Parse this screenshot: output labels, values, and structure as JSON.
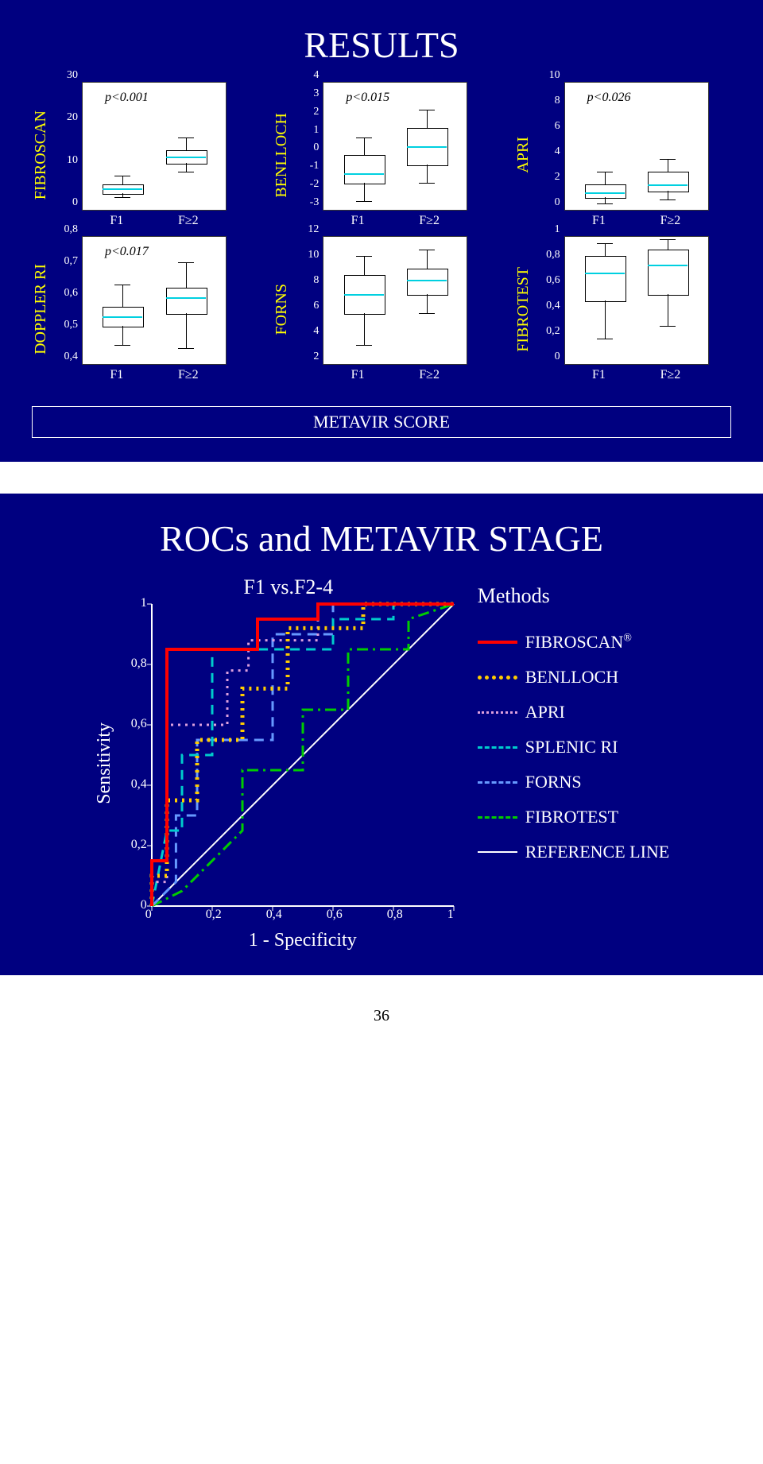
{
  "page_number": "36",
  "slide1": {
    "title": "RESULTS",
    "metavir_label": "METAVIR SCORE",
    "charts": [
      {
        "label": "FIBROSCAN",
        "pval": "p<0.001",
        "yticks": [
          "0",
          "10",
          "20",
          "30"
        ],
        "ymin": 0,
        "ymax": 30,
        "categories": [
          "F1",
          "F≥2"
        ],
        "boxes": [
          {
            "q1": 4,
            "med": 5,
            "q3": 6,
            "lo": 3,
            "hi": 8
          },
          {
            "q1": 11,
            "med": 12.5,
            "q3": 14,
            "lo": 9,
            "hi": 17
          }
        ]
      },
      {
        "label": "BENLLOCH",
        "pval": "p<0.015",
        "yticks": [
          "-3",
          "-2",
          "-1",
          "0",
          "1",
          "2",
          "3",
          "4"
        ],
        "ymin": -3,
        "ymax": 4,
        "categories": [
          "F1",
          "F≥2"
        ],
        "boxes": [
          {
            "q1": -1.5,
            "med": -1,
            "q3": 0,
            "lo": -2.5,
            "hi": 1
          },
          {
            "q1": -0.5,
            "med": 0.5,
            "q3": 1.5,
            "lo": -1.5,
            "hi": 2.5
          }
        ]
      },
      {
        "label": "APRI",
        "pval": "p<0.026",
        "yticks": [
          "0",
          "2",
          "4",
          "6",
          "8",
          "10"
        ],
        "ymin": 0,
        "ymax": 10,
        "categories": [
          "F1",
          "F≥2"
        ],
        "boxes": [
          {
            "q1": 1,
            "med": 1.4,
            "q3": 2,
            "lo": 0.5,
            "hi": 3
          },
          {
            "q1": 1.5,
            "med": 2,
            "q3": 3,
            "lo": 0.8,
            "hi": 4
          }
        ]
      },
      {
        "label": "DOPPLER RI",
        "pval": "p<0.017",
        "yticks": [
          "0,4",
          "0,5",
          "0,6",
          "0,7",
          "0,8"
        ],
        "ymin": 0.4,
        "ymax": 0.8,
        "categories": [
          "F1",
          "F≥2"
        ],
        "boxes": [
          {
            "q1": 0.52,
            "med": 0.55,
            "q3": 0.58,
            "lo": 0.46,
            "hi": 0.65
          },
          {
            "q1": 0.56,
            "med": 0.61,
            "q3": 0.64,
            "lo": 0.45,
            "hi": 0.72
          }
        ]
      },
      {
        "label": "FORNS",
        "pval": "",
        "yticks": [
          "2",
          "4",
          "6",
          "8",
          "10",
          "12"
        ],
        "ymin": 2,
        "ymax": 12,
        "categories": [
          "F1",
          "F≥2"
        ],
        "boxes": [
          {
            "q1": 6,
            "med": 7.5,
            "q3": 9,
            "lo": 3.5,
            "hi": 10.5
          },
          {
            "q1": 7.5,
            "med": 8.6,
            "q3": 9.5,
            "lo": 6,
            "hi": 11
          }
        ]
      },
      {
        "label": "FIBROTEST",
        "pval": "",
        "yticks": [
          "0",
          "0,2",
          "0,4",
          "0,6",
          "0,8",
          "1"
        ],
        "ymin": 0,
        "ymax": 1,
        "categories": [
          "F1",
          "F≥2"
        ],
        "boxes": [
          {
            "q1": 0.5,
            "med": 0.72,
            "q3": 0.85,
            "lo": 0.2,
            "hi": 0.95
          },
          {
            "q1": 0.55,
            "med": 0.78,
            "q3": 0.9,
            "lo": 0.3,
            "hi": 0.98
          }
        ]
      }
    ]
  },
  "slide2": {
    "title": "ROCs  and METAVIR STAGE",
    "subtitle": "F1 vs.F2-4",
    "ylabel": "Sensitivity",
    "xlabel": "1 - Specificity",
    "xticks": [
      "0",
      "0,2",
      "0,4",
      "0,6",
      "0,8",
      "1"
    ],
    "yticks": [
      "0",
      "0,2",
      "0,4",
      "0,6",
      "0,8",
      "1"
    ],
    "legend_title": "Methods",
    "legend": [
      {
        "label": "FIBROSCAN",
        "suffix": "®",
        "color": "#ff0000",
        "dash": "solid",
        "width": 4
      },
      {
        "label": "BENLLOCH",
        "suffix": "",
        "color": "#ffcc00",
        "dash": "dotted",
        "width": 5
      },
      {
        "label": "APRI",
        "suffix": "",
        "color": "#dda0dd",
        "dash": "dotted",
        "width": 3
      },
      {
        "label": "SPLENIC RI",
        "suffix": "",
        "color": "#00cccc",
        "dash": "dashed",
        "width": 3
      },
      {
        "label": "FORNS",
        "suffix": "",
        "color": "#6699ff",
        "dash": "dashed",
        "width": 3
      },
      {
        "label": "FIBROTEST",
        "suffix": "",
        "color": "#00cc00",
        "dash": "dash-dot",
        "width": 3
      },
      {
        "label": "REFERENCE LINE",
        "suffix": "",
        "color": "#ffffff",
        "dash": "solid",
        "width": 2
      }
    ],
    "curves": {
      "reference": [
        [
          0,
          0
        ],
        [
          1,
          1
        ]
      ],
      "fibroscan": [
        [
          0,
          0
        ],
        [
          0,
          0.15
        ],
        [
          0.05,
          0.15
        ],
        [
          0.05,
          0.85
        ],
        [
          0.35,
          0.85
        ],
        [
          0.35,
          0.95
        ],
        [
          0.55,
          0.95
        ],
        [
          0.55,
          1
        ],
        [
          1,
          1
        ]
      ],
      "benlloch": [
        [
          0,
          0
        ],
        [
          0,
          0.1
        ],
        [
          0.05,
          0.1
        ],
        [
          0.05,
          0.35
        ],
        [
          0.15,
          0.35
        ],
        [
          0.15,
          0.55
        ],
        [
          0.3,
          0.55
        ],
        [
          0.3,
          0.72
        ],
        [
          0.45,
          0.72
        ],
        [
          0.45,
          0.92
        ],
        [
          0.7,
          0.92
        ],
        [
          0.7,
          1
        ],
        [
          1,
          1
        ]
      ],
      "apri": [
        [
          0,
          0
        ],
        [
          0,
          0.08
        ],
        [
          0.05,
          0.08
        ],
        [
          0.05,
          0.6
        ],
        [
          0.25,
          0.6
        ],
        [
          0.25,
          0.78
        ],
        [
          0.32,
          0.78
        ],
        [
          0.32,
          0.88
        ],
        [
          0.55,
          0.88
        ],
        [
          0.55,
          1
        ],
        [
          1,
          1
        ]
      ],
      "splenic": [
        [
          0,
          0
        ],
        [
          0.05,
          0.25
        ],
        [
          0.1,
          0.25
        ],
        [
          0.1,
          0.5
        ],
        [
          0.2,
          0.5
        ],
        [
          0.2,
          0.85
        ],
        [
          0.6,
          0.85
        ],
        [
          0.6,
          0.95
        ],
        [
          0.8,
          0.95
        ],
        [
          0.8,
          1
        ],
        [
          1,
          1
        ]
      ],
      "forns": [
        [
          0,
          0
        ],
        [
          0.08,
          0.08
        ],
        [
          0.08,
          0.3
        ],
        [
          0.15,
          0.3
        ],
        [
          0.15,
          0.55
        ],
        [
          0.4,
          0.55
        ],
        [
          0.4,
          0.9
        ],
        [
          0.6,
          0.9
        ],
        [
          0.6,
          1
        ],
        [
          1,
          1
        ]
      ],
      "fibrotest": [
        [
          0,
          0
        ],
        [
          0.1,
          0.05
        ],
        [
          0.3,
          0.25
        ],
        [
          0.3,
          0.45
        ],
        [
          0.5,
          0.45
        ],
        [
          0.5,
          0.65
        ],
        [
          0.65,
          0.65
        ],
        [
          0.65,
          0.85
        ],
        [
          0.85,
          0.85
        ],
        [
          0.85,
          0.95
        ],
        [
          1,
          1
        ]
      ]
    }
  }
}
